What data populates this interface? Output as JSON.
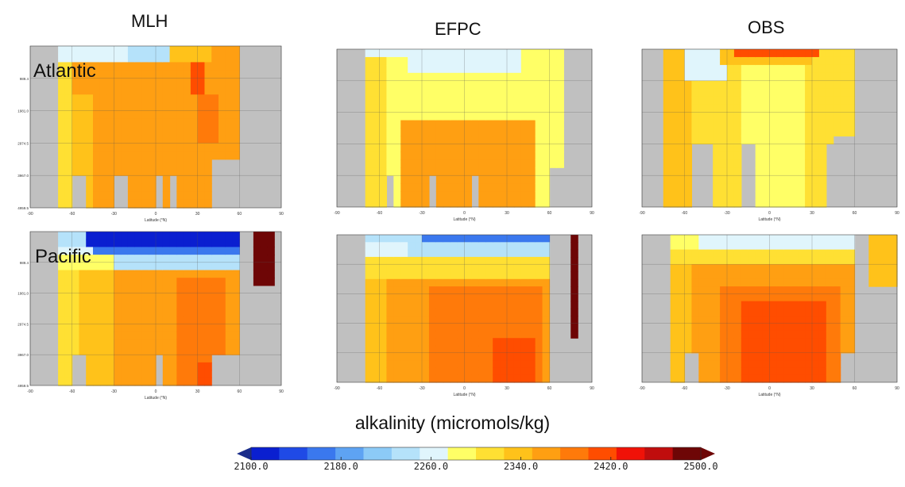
{
  "column_titles": [
    "MLH",
    "EFPC",
    "OBS"
  ],
  "row_labels": [
    "Atlantic",
    "Pacific"
  ],
  "colorbar": {
    "title": "alkalinity (micromols/kg)",
    "ticks": [
      "2100.0",
      "2180.0",
      "2260.0",
      "2340.0",
      "2420.0",
      "2500.0"
    ],
    "colors": [
      "#0a1fd0",
      "#1f4ae6",
      "#3a78ee",
      "#5ea3f3",
      "#8ccaf7",
      "#b5e2fa",
      "#e0f5fc",
      "#ffff66",
      "#ffe033",
      "#ffc21a",
      "#ff9f12",
      "#ff7a0a",
      "#ff4d00",
      "#f01208",
      "#c00d0d",
      "#6e0606"
    ],
    "extend_low_color": "#1a2d8a",
    "extend_high_color": "#6e0606"
  },
  "chart_data": [
    {
      "type": "heatmap",
      "panel": "MLH",
      "basin": "Atlantic",
      "xlabel": "Latitude (°N)",
      "xticks": [
        "-90",
        "-60",
        "-30",
        "0",
        "30",
        "60",
        "90"
      ],
      "yticks": [
        "989.4",
        "1981.0",
        "2974.5",
        "3967.0",
        "4959.5"
      ],
      "xlim": [
        -90,
        90
      ],
      "ylim_depth_m": [
        0,
        4959.5
      ],
      "value_units": "micromols/kg",
      "description_levels": "surface ~2300-2340, interior ~2380-2420, max ~2460 near 30N"
    },
    {
      "type": "heatmap",
      "panel": "EFPC",
      "basin": "Atlantic",
      "xlabel": "Latitude (°N)",
      "xticks": [
        "-90",
        "-60",
        "-30",
        "0",
        "30",
        "60",
        "90"
      ],
      "xlim": [
        -90,
        90
      ],
      "value_units": "micromols/kg"
    },
    {
      "type": "heatmap",
      "panel": "OBS",
      "basin": "Atlantic",
      "xlabel": "Latitude (°N)",
      "xticks": [
        "-90",
        "-60",
        "-30",
        "0",
        "30",
        "60",
        "90"
      ],
      "xlim": [
        -90,
        90
      ],
      "value_units": "micromols/kg"
    },
    {
      "type": "heatmap",
      "panel": "MLH",
      "basin": "Pacific",
      "xlabel": "Latitude (°N)",
      "xticks": [
        "-90",
        "-60",
        "-30",
        "0",
        "30",
        "60",
        "90"
      ],
      "yticks": [
        "989.4",
        "1981.0",
        "2974.5",
        "3967.0",
        "4959.5"
      ],
      "xlim": [
        -90,
        90
      ],
      "value_units": "micromols/kg"
    },
    {
      "type": "heatmap",
      "panel": "EFPC",
      "basin": "Pacific",
      "xlabel": "Latitude (°N)",
      "xticks": [
        "-90",
        "-60",
        "-30",
        "0",
        "30",
        "60",
        "90"
      ],
      "xlim": [
        -90,
        90
      ],
      "value_units": "micromols/kg"
    },
    {
      "type": "heatmap",
      "panel": "OBS",
      "basin": "Pacific",
      "xlabel": "Latitude (°N)",
      "xticks": [
        "-90",
        "-60",
        "-30",
        "0",
        "30",
        "60",
        "90"
      ],
      "xlim": [
        -90,
        90
      ],
      "value_units": "micromols/kg"
    }
  ]
}
